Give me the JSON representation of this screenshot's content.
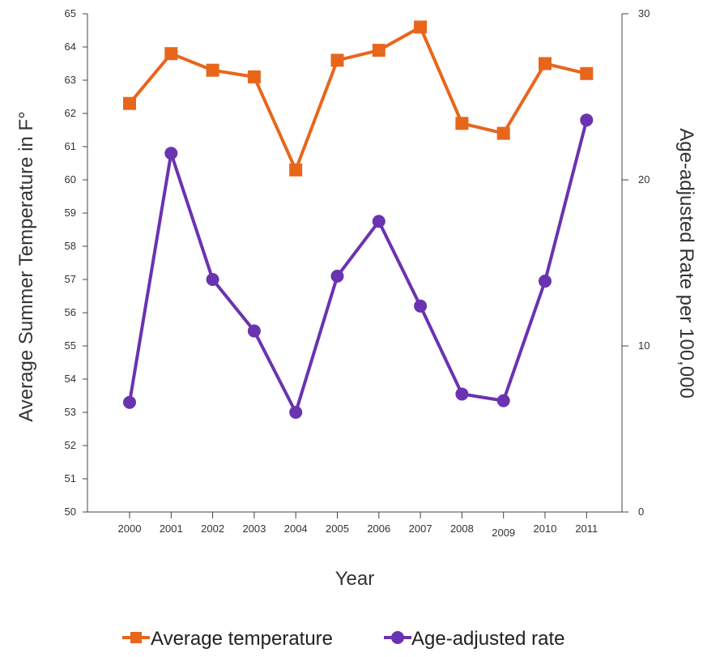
{
  "chart_data": {
    "type": "line",
    "title": "",
    "xlabel": "Year",
    "ylabel": "Average Summer Temperature in F°",
    "y2label": "Age-adjusted Rate per 100,000",
    "categories": [
      "2000",
      "2001",
      "2002",
      "2003",
      "2004",
      "2005",
      "2006",
      "2007",
      "2008",
      "2009",
      "2010",
      "2011"
    ],
    "ylim": [
      50,
      65
    ],
    "y_ticks": [
      "50",
      "51",
      "52",
      "53",
      "54",
      "55",
      "56",
      "57",
      "58",
      "59",
      "60",
      "61",
      "62",
      "63",
      "64",
      "65"
    ],
    "y2lim": [
      0,
      30
    ],
    "y2_ticks": [
      "0",
      "10",
      "20",
      "30"
    ],
    "grid": false,
    "legend_position": "bottom",
    "series": [
      {
        "name": "Average temperature",
        "axis": "left",
        "color": "#E8661C",
        "marker": "square",
        "values": [
          62.3,
          63.8,
          63.3,
          63.1,
          60.3,
          63.6,
          63.9,
          64.6,
          61.7,
          61.4,
          63.5,
          63.2
        ]
      },
      {
        "name": "Age-adjusted rate",
        "axis": "right",
        "color": "#6A33B0",
        "marker": "circle",
        "values": [
          6.6,
          21.6,
          14.0,
          10.9,
          6.0,
          14.2,
          17.5,
          12.4,
          7.1,
          6.7,
          13.9,
          23.6
        ]
      }
    ]
  }
}
